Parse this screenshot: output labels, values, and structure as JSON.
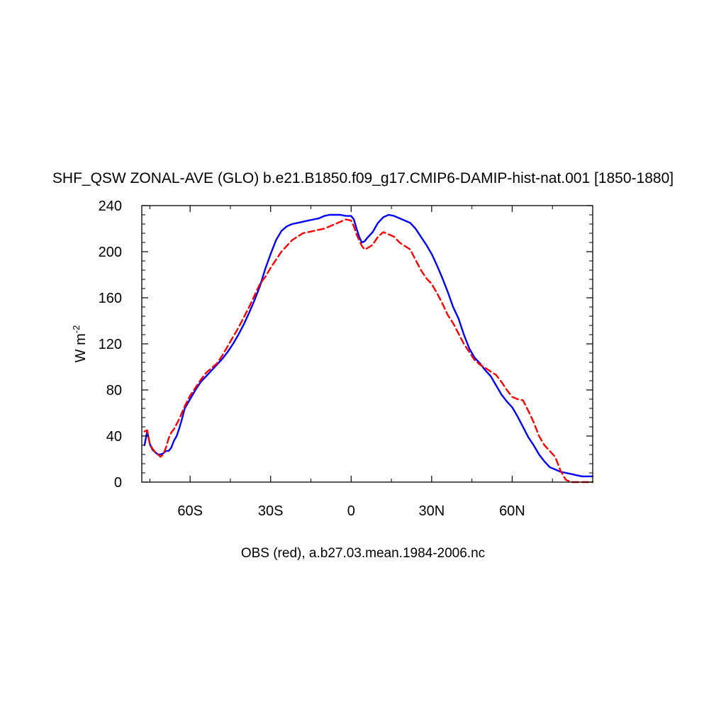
{
  "chart_data": {
    "type": "line",
    "title": "SHF_QSW ZONAL-AVE (GLO) b.e21.B1850.f09_g17.CMIP6-DAMIP-hist-nat.001 [1850-1880]",
    "caption": "OBS (red), a.b27.03.mean.1984-2006.nc",
    "ylabel": {
      "main": "W m",
      "superscript": "-2"
    },
    "xlim": [
      -78,
      90
    ],
    "ylim": [
      0,
      240
    ],
    "y_ticks": [
      0,
      40,
      80,
      120,
      160,
      200,
      240
    ],
    "x_ticks": [
      {
        "value": -60,
        "label": "60S"
      },
      {
        "value": -30,
        "label": "30S"
      },
      {
        "value": 0,
        "label": "0"
      },
      {
        "value": 30,
        "label": "30N"
      },
      {
        "value": 60,
        "label": "60N"
      }
    ],
    "grid": false,
    "series": [
      {
        "color": "#0000ff",
        "dash": "solid",
        "x": [
          -77,
          -76,
          -75,
          -74,
          -73,
          -72,
          -71,
          -70,
          -69,
          -68,
          -67,
          -66,
          -65,
          -64,
          -63,
          -62,
          -60,
          -58,
          -56,
          -54,
          -52,
          -50,
          -48,
          -46,
          -44,
          -42,
          -40,
          -38,
          -36,
          -34,
          -32,
          -30,
          -28,
          -26,
          -24,
          -22,
          -20,
          -18,
          -16,
          -14,
          -12,
          -10,
          -8,
          -6,
          -4,
          -2,
          0,
          1,
          2,
          3,
          4,
          5,
          6,
          8,
          10,
          12,
          14,
          16,
          18,
          20,
          22,
          24,
          26,
          28,
          30,
          32,
          34,
          36,
          38,
          40,
          42,
          44,
          46,
          48,
          50,
          52,
          54,
          56,
          58,
          60,
          62,
          64,
          66,
          68,
          70,
          72,
          74,
          76,
          78,
          80,
          82,
          84,
          86,
          88,
          90
        ],
        "y": [
          32,
          44,
          33,
          28,
          26,
          24,
          24,
          25,
          27,
          27,
          30,
          36,
          40,
          47,
          55,
          64,
          72,
          80,
          87,
          92,
          97,
          102,
          107,
          113,
          120,
          128,
          137,
          147,
          158,
          170,
          185,
          198,
          210,
          218,
          222,
          224,
          225,
          226,
          227,
          228,
          229,
          231,
          232,
          232,
          232,
          231,
          231,
          228,
          220,
          213,
          208,
          209,
          212,
          217,
          225,
          230,
          232,
          231,
          229,
          227,
          225,
          220,
          213,
          206,
          198,
          188,
          177,
          165,
          152,
          142,
          128,
          116,
          108,
          103,
          97,
          92,
          84,
          76,
          70,
          65,
          57,
          48,
          39,
          32,
          24,
          18,
          13,
          11,
          9,
          8,
          7,
          6,
          5,
          5,
          5
        ]
      },
      {
        "color": "#ff0000",
        "dash": "dashed",
        "x": [
          -77,
          -76,
          -75,
          -74,
          -73,
          -72,
          -71,
          -70,
          -69,
          -68,
          -67,
          -66,
          -64,
          -62,
          -60,
          -58,
          -56,
          -54,
          -52,
          -50,
          -48,
          -46,
          -44,
          -42,
          -40,
          -38,
          -36,
          -34,
          -32,
          -30,
          -28,
          -26,
          -24,
          -22,
          -20,
          -18,
          -16,
          -14,
          -12,
          -10,
          -8,
          -6,
          -4,
          -2,
          0,
          1,
          2,
          3,
          4,
          5,
          6,
          8,
          10,
          12,
          14,
          16,
          18,
          20,
          22,
          24,
          26,
          28,
          30,
          32,
          34,
          36,
          38,
          40,
          42,
          44,
          46,
          48,
          50,
          52,
          54,
          56,
          58,
          60,
          62,
          64,
          66,
          68,
          70,
          72,
          74,
          76,
          78,
          80,
          82,
          84,
          86,
          88,
          90
        ],
        "y": [
          44,
          45,
          33,
          29,
          26,
          24,
          22,
          24,
          30,
          38,
          43,
          46,
          55,
          66,
          75,
          82,
          89,
          95,
          99,
          103,
          110,
          118,
          126,
          134,
          143,
          152,
          162,
          172,
          178,
          186,
          193,
          200,
          205,
          210,
          213,
          216,
          217,
          218,
          219,
          220,
          222,
          224,
          226,
          228,
          227,
          222,
          215,
          210,
          205,
          202,
          203,
          206,
          213,
          217,
          215,
          213,
          208,
          205,
          202,
          193,
          184,
          177,
          172,
          164,
          155,
          145,
          138,
          129,
          120,
          113,
          106,
          102,
          99,
          96,
          93,
          87,
          80,
          74,
          72,
          71,
          62,
          52,
          40,
          32,
          27,
          22,
          10,
          2,
          0,
          0,
          0,
          0,
          0
        ]
      }
    ]
  }
}
